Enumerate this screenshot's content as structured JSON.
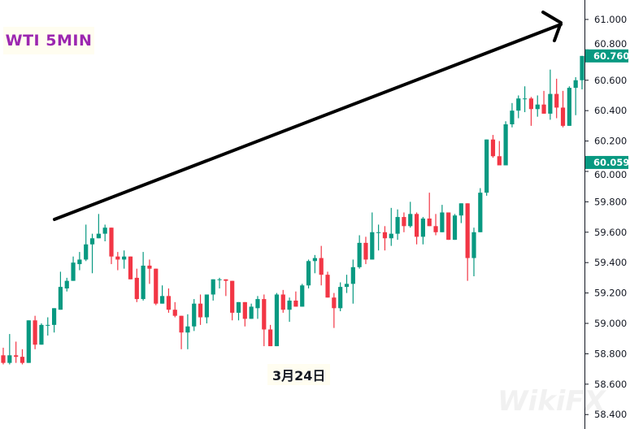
{
  "chart_data": {
    "type": "candlestick",
    "title": "WTI 5MIN",
    "x_label": "3月24日",
    "y_axis": {
      "position": "right",
      "range": [
        58.305,
        61.128
      ],
      "ticks": [
        "61.000",
        "60.800",
        "60.600",
        "60.400",
        "60.200",
        "60.000",
        "59.800",
        "59.600",
        "59.400",
        "59.200",
        "59.000",
        "58.800",
        "58.600",
        "58.400"
      ]
    },
    "price_labels": [
      {
        "value": "60.760",
        "color": "#089981"
      },
      {
        "value": "60.059",
        "color": "#089981"
      }
    ],
    "grid": false,
    "colors": {
      "up": "#089981",
      "down": "#f23645",
      "arrow": "#000000",
      "title": "#9c27b0"
    },
    "annotation": "trend arrow pointing up-right",
    "watermark": "WikiFX",
    "candles": [
      [
        58.79,
        58.84,
        58.73,
        58.74
      ],
      [
        58.74,
        58.93,
        58.73,
        58.79
      ],
      [
        58.79,
        58.88,
        58.74,
        58.78
      ],
      [
        58.78,
        58.83,
        58.73,
        58.74
      ],
      [
        58.74,
        59.02,
        58.74,
        59.02
      ],
      [
        59.02,
        59.05,
        58.83,
        58.86
      ],
      [
        58.86,
        59.0,
        58.86,
        58.99
      ],
      [
        58.99,
        59.04,
        58.92,
        58.99
      ],
      [
        58.99,
        59.1,
        58.94,
        59.1
      ],
      [
        59.09,
        59.34,
        59.09,
        59.24
      ],
      [
        59.23,
        59.3,
        59.21,
        59.28
      ],
      [
        59.28,
        59.44,
        59.28,
        59.4
      ],
      [
        59.39,
        59.47,
        59.35,
        59.42
      ],
      [
        59.42,
        59.65,
        59.41,
        59.52
      ],
      [
        59.52,
        59.59,
        59.33,
        59.56
      ],
      [
        59.56,
        59.72,
        59.56,
        59.59
      ],
      [
        59.59,
        59.65,
        59.54,
        59.63
      ],
      [
        59.63,
        59.63,
        59.39,
        59.44
      ],
      [
        59.44,
        59.47,
        59.35,
        59.42
      ],
      [
        59.42,
        59.48,
        59.36,
        59.44
      ],
      [
        59.44,
        59.44,
        59.29,
        59.29
      ],
      [
        59.3,
        59.36,
        59.14,
        59.16
      ],
      [
        59.16,
        59.47,
        59.15,
        59.38
      ],
      [
        59.38,
        59.42,
        59.26,
        59.36
      ],
      [
        59.36,
        59.36,
        59.12,
        59.13
      ],
      [
        59.13,
        59.25,
        59.13,
        59.18
      ],
      [
        59.18,
        59.23,
        59.07,
        59.09
      ],
      [
        59.09,
        59.14,
        59.04,
        59.05
      ],
      [
        59.05,
        59.05,
        58.83,
        58.94
      ],
      [
        58.94,
        59.06,
        58.83,
        58.98
      ],
      [
        58.98,
        59.16,
        58.95,
        59.13
      ],
      [
        59.13,
        59.19,
        58.99,
        59.04
      ],
      [
        59.04,
        59.19,
        59.0,
        59.19
      ],
      [
        59.19,
        59.29,
        59.15,
        59.29
      ],
      [
        59.29,
        59.3,
        59.23,
        59.29
      ],
      [
        59.29,
        59.29,
        59.18,
        59.28
      ],
      [
        59.28,
        59.28,
        59.02,
        59.07
      ],
      [
        59.07,
        59.14,
        59.02,
        59.14
      ],
      [
        59.14,
        59.14,
        58.98,
        59.03
      ],
      [
        59.03,
        59.13,
        59.03,
        59.11
      ],
      [
        59.1,
        59.18,
        59.03,
        59.16
      ],
      [
        59.16,
        59.19,
        58.85,
        58.96
      ],
      [
        58.96,
        58.99,
        58.85,
        58.85
      ],
      [
        58.85,
        59.2,
        58.85,
        59.19
      ],
      [
        59.19,
        59.22,
        59.07,
        59.09
      ],
      [
        59.09,
        59.17,
        59.01,
        59.15
      ],
      [
        59.15,
        59.21,
        59.11,
        59.11
      ],
      [
        59.11,
        59.26,
        59.11,
        59.25
      ],
      [
        59.25,
        59.42,
        59.23,
        59.41
      ],
      [
        59.41,
        59.45,
        59.33,
        59.43
      ],
      [
        59.43,
        59.51,
        59.25,
        59.32
      ],
      [
        59.32,
        59.34,
        59.17,
        59.17
      ],
      [
        59.17,
        59.2,
        58.97,
        59.1
      ],
      [
        59.1,
        59.27,
        59.08,
        59.24
      ],
      [
        59.24,
        59.32,
        59.2,
        59.26
      ],
      [
        59.26,
        59.42,
        59.13,
        59.37
      ],
      [
        59.37,
        59.58,
        59.36,
        59.53
      ],
      [
        59.53,
        59.57,
        59.39,
        59.42
      ],
      [
        59.42,
        59.73,
        59.42,
        59.6
      ],
      [
        59.6,
        59.65,
        59.48,
        59.6
      ],
      [
        59.6,
        59.64,
        59.48,
        59.56
      ],
      [
        59.56,
        59.76,
        59.51,
        59.59
      ],
      [
        59.59,
        59.75,
        59.55,
        59.7
      ],
      [
        59.7,
        59.73,
        59.6,
        59.64
      ],
      [
        59.64,
        59.8,
        59.63,
        59.72
      ],
      [
        59.72,
        59.73,
        59.52,
        59.57
      ],
      [
        59.57,
        59.7,
        59.52,
        59.69
      ],
      [
        59.69,
        59.86,
        59.64,
        59.64
      ],
      [
        59.64,
        59.72,
        59.58,
        59.6
      ],
      [
        59.6,
        59.78,
        59.6,
        59.73
      ],
      [
        59.73,
        59.73,
        59.55,
        59.55
      ],
      [
        59.55,
        59.72,
        59.55,
        59.71
      ],
      [
        59.71,
        59.79,
        59.66,
        59.79
      ],
      [
        59.79,
        59.79,
        59.28,
        59.43
      ],
      [
        59.43,
        59.63,
        59.31,
        59.6
      ],
      [
        59.6,
        59.89,
        59.6,
        59.86
      ],
      [
        59.86,
        60.21,
        59.84,
        60.21
      ],
      [
        60.21,
        60.24,
        60.09,
        60.1
      ],
      [
        60.1,
        60.2,
        60.04,
        60.04
      ],
      [
        60.04,
        60.33,
        60.04,
        60.31
      ],
      [
        60.31,
        60.45,
        60.29,
        60.4
      ],
      [
        60.4,
        60.5,
        60.35,
        60.48
      ],
      [
        60.48,
        60.56,
        60.39,
        60.48
      ],
      [
        60.48,
        60.49,
        60.3,
        60.41
      ],
      [
        60.41,
        60.5,
        60.36,
        60.44
      ],
      [
        60.44,
        60.53,
        60.38,
        60.38
      ],
      [
        60.38,
        60.67,
        60.34,
        60.51
      ],
      [
        60.51,
        60.61,
        60.35,
        60.42
      ],
      [
        60.42,
        60.53,
        60.29,
        60.3
      ],
      [
        60.3,
        60.56,
        60.3,
        60.55
      ],
      [
        60.55,
        60.62,
        60.37,
        60.6
      ],
      [
        60.6,
        60.76,
        60.54,
        60.76
      ]
    ],
    "candle_format": [
      "open",
      "high",
      "low",
      "close"
    ]
  }
}
